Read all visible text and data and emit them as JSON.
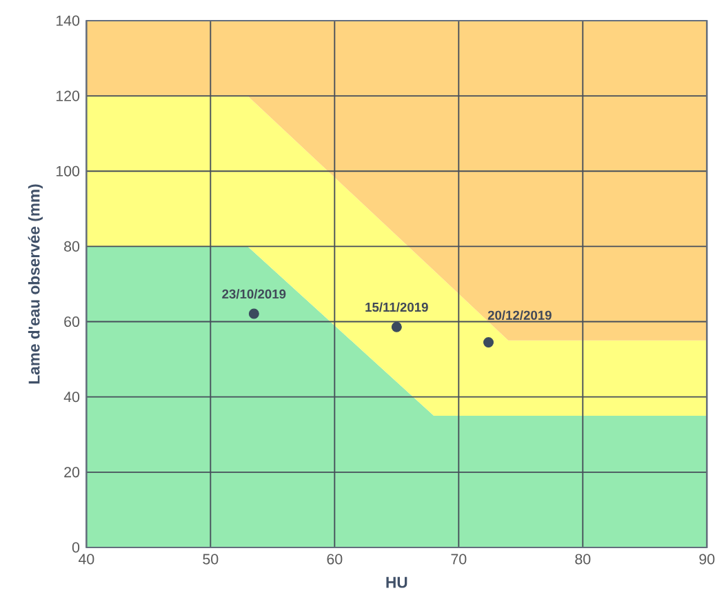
{
  "chart_data": {
    "type": "scatter",
    "xlabel": "HU",
    "ylabel": "Lame d'eau observée (mm)",
    "xlim": [
      40,
      90
    ],
    "ylim": [
      0,
      140
    ],
    "xticks": [
      40,
      50,
      60,
      70,
      80,
      90
    ],
    "yticks": [
      0,
      20,
      40,
      60,
      80,
      100,
      120,
      140
    ],
    "grid": true,
    "stacked": true,
    "series": [
      {
        "type": "area",
        "marker": "none",
        "color": "#95eab0",
        "x": [
          40,
          53,
          68,
          74,
          90
        ],
        "values": [
          80,
          80,
          35,
          35,
          35
        ]
      },
      {
        "type": "area",
        "marker": "none",
        "color": "#ffff80",
        "x": [
          40,
          53,
          68,
          74,
          90
        ],
        "values": [
          40,
          40,
          38.6,
          20,
          20
        ]
      },
      {
        "type": "area",
        "marker": "none",
        "color": "#ffd480",
        "x": [
          40,
          53,
          68,
          74,
          90
        ],
        "values": [
          20,
          20,
          66.4,
          85,
          85
        ]
      },
      {
        "color": "#3b4a5e",
        "marker": "circle",
        "x": [
          53.5,
          65.0,
          72.4
        ],
        "values": [
          62.1,
          58.6,
          54.5
        ]
      }
    ],
    "annotations": [
      {
        "text": "23/10/2019",
        "x": 53.5,
        "y": 62.1
      },
      {
        "text": "15/11/2019",
        "x": 65.0,
        "y": 58.6
      },
      {
        "text": "20/12/2019",
        "x": 72.4,
        "y": 54.5
      }
    ]
  }
}
